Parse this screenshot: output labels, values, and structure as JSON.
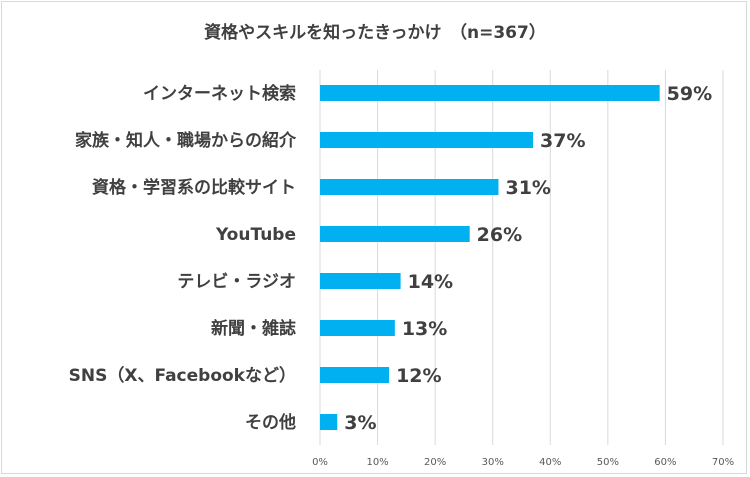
{
  "chart_data": {
    "type": "bar",
    "orientation": "horizontal",
    "title": "資格やスキルを知ったきっかけ　（n=367）",
    "categories": [
      "インターネット検索",
      "家族・知人・職場からの紹介",
      "資格・学習系の比較サイト",
      "YouTube",
      "テレビ・ラジオ",
      "新聞・雑誌",
      "SNS（X、Facebookなど）",
      "その他"
    ],
    "values": [
      59,
      37,
      31,
      26,
      14,
      13,
      12,
      3
    ],
    "value_labels": [
      "59%",
      "37%",
      "31%",
      "26%",
      "14%",
      "13%",
      "12%",
      "3%"
    ],
    "xlim": [
      0,
      70
    ],
    "x_ticks": [
      "0%",
      "10%",
      "20%",
      "30%",
      "40%",
      "50%",
      "60%",
      "70%"
    ],
    "grid": "vertical",
    "colors": {
      "bar": "#00b0f0",
      "grid": "#d9d9d9",
      "text": "#404040"
    }
  }
}
